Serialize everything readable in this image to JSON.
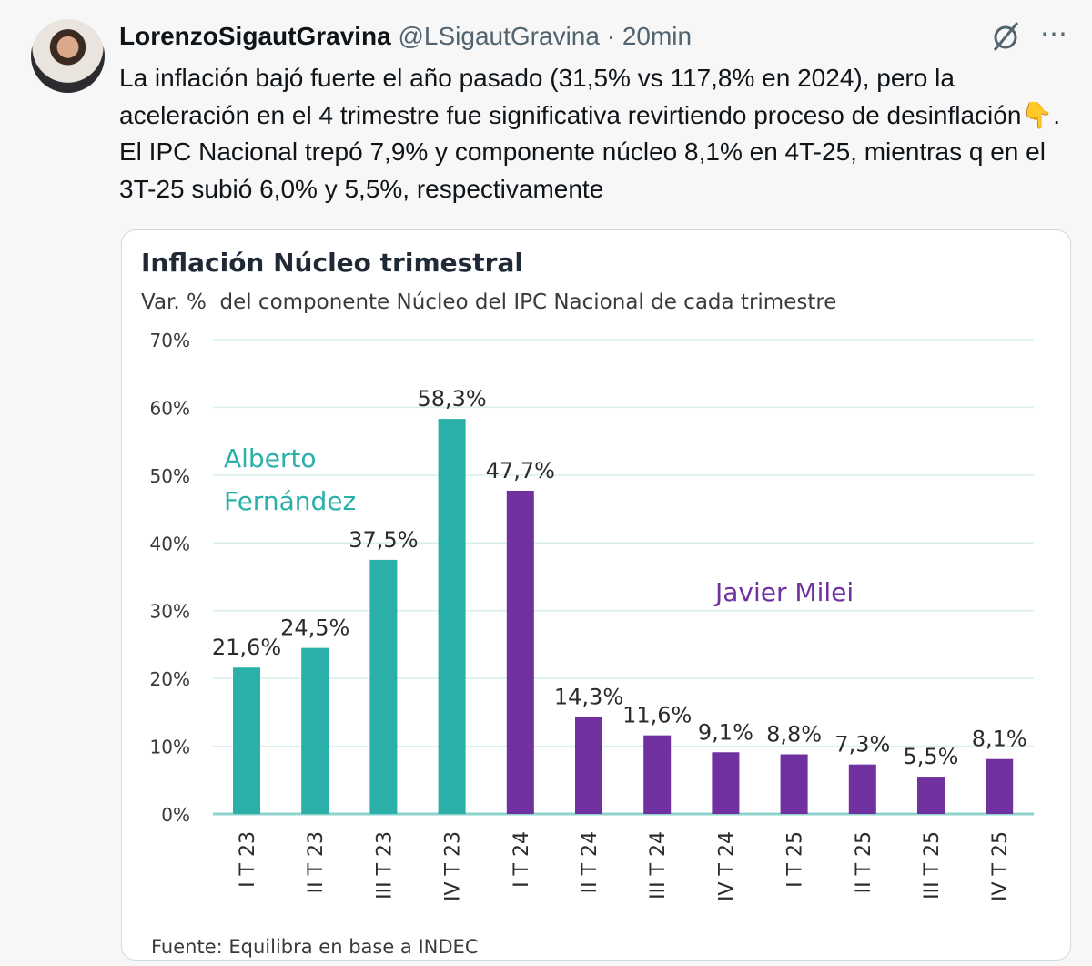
{
  "tweet": {
    "display_name": "LorenzoSigautGravina",
    "handle": "@LSigautGravina",
    "separator": "·",
    "time": "20min",
    "text": "La inflación bajó fuerte el año pasado (31,5% vs 117,8% en 2024), pero la aceleración en el 4 trimestre fue significativa revirtiendo proceso de desinflación👇. El IPC Nacional trepó 7,9% y componente núcleo 8,1% en 4T-25, mientras q en el 3T-25 subió 6,0% y 5,5%, respectivamente",
    "grok_icon": "slashed-circle-icon",
    "more_icon": "⋯"
  },
  "colors": {
    "teal": "#2ab0a8",
    "purple": "#7030a0",
    "grid": "#d8efed"
  },
  "chart_data": {
    "type": "bar",
    "title": "Inflación Núcleo trimestral",
    "subtitle": "Var. %  del componente Núcleo del IPC Nacional de cada trimestre",
    "categories": [
      "I T 23",
      "II T 23",
      "III T 23",
      "IV T 23",
      "I T 24",
      "II T 24",
      "III T 24",
      "IV T 24",
      "I T 25",
      "II T 25",
      "III T 25",
      "IV T 25"
    ],
    "values": [
      21.6,
      24.5,
      37.5,
      58.3,
      47.7,
      14.3,
      11.6,
      9.1,
      8.8,
      7.3,
      5.5,
      8.1
    ],
    "data_labels": [
      "21,6%",
      "24,5%",
      "37,5%",
      "58,3%",
      "47,7%",
      "14,3%",
      "11,6%",
      "9,1%",
      "8,8%",
      "7,3%",
      "5,5%",
      "8,1%"
    ],
    "series_group": [
      "teal",
      "teal",
      "teal",
      "teal",
      "purple",
      "purple",
      "purple",
      "purple",
      "purple",
      "purple",
      "purple",
      "purple"
    ],
    "yticks": [
      0,
      10,
      20,
      30,
      40,
      50,
      60,
      70
    ],
    "ytick_labels": [
      "0%",
      "10%",
      "20%",
      "30%",
      "40%",
      "50%",
      "60%",
      "70%"
    ],
    "ylim": [
      0,
      70
    ],
    "grid": true,
    "annotations": {
      "alberto_line1": "Alberto",
      "alberto_line2": "Fernández",
      "milei": "Javier Milei"
    },
    "source": "Fuente: Equilibra en base a INDEC"
  }
}
